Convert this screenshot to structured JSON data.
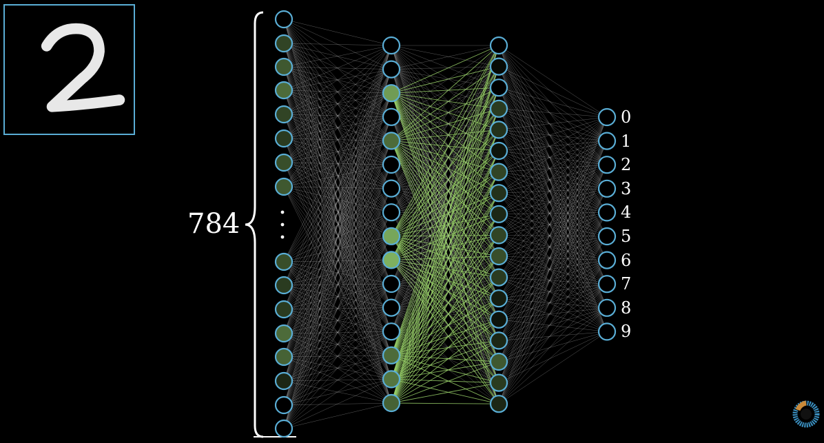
{
  "input_digit_image": {
    "icon": "handwritten-digit-2-image",
    "frame_color": "#5aaed6"
  },
  "input_layer": {
    "size_label": "784",
    "visible_top_activations": [
      0.0,
      0.35,
      0.45,
      0.55,
      0.35,
      0.3,
      0.4,
      0.45
    ],
    "visible_bottom_activations": [
      0.4,
      0.3,
      0.3,
      0.55,
      0.5,
      0.2,
      0.0,
      0.0
    ]
  },
  "hidden_layer_1": {
    "activations": [
      0.0,
      0.0,
      0.8,
      0.0,
      0.55,
      0.0,
      0.0,
      0.0,
      0.85,
      0.9,
      0.0,
      0.0,
      0.0,
      0.55,
      0.6,
      0.5
    ]
  },
  "hidden_layer_2": {
    "activations": [
      0.0,
      0.05,
      0.0,
      0.3,
      0.25,
      0.1,
      0.35,
      0.25,
      0.2,
      0.35,
      0.4,
      0.3,
      0.15,
      0.1,
      0.2,
      0.45,
      0.3,
      0.2
    ]
  },
  "output_layer": {
    "labels": [
      "0",
      "1",
      "2",
      "3",
      "4",
      "5",
      "6",
      "7",
      "8",
      "9"
    ],
    "activations": [
      0.0,
      0.0,
      0.0,
      0.0,
      0.0,
      0.0,
      0.0,
      0.0,
      0.0,
      0.0
    ]
  },
  "colors": {
    "background": "#000000",
    "neuron_outline": "#5aaed6",
    "activation_fill": "#8cc36a",
    "connection_neutral": "#cfcfcf",
    "connection_active": "#9bd36b",
    "text": "#ffffff"
  },
  "logo": {
    "icon": "3blue1brown-pi-logo-icon"
  }
}
